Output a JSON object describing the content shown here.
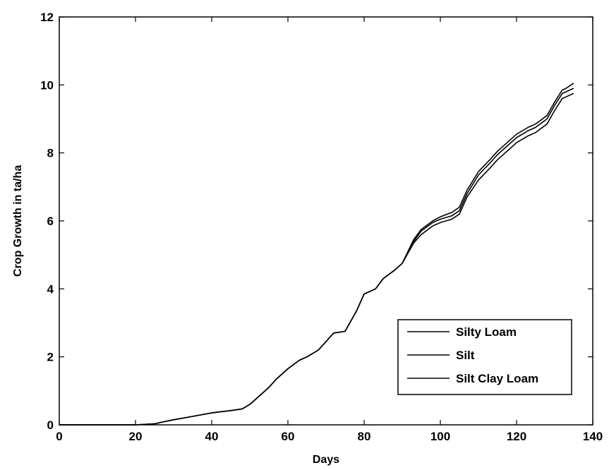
{
  "chart_data": {
    "type": "line",
    "xlabel": "Days",
    "ylabel": "Crop Growth in ta/ha",
    "xlim": [
      0,
      140
    ],
    "ylim": [
      0,
      12
    ],
    "xticks": [
      0,
      20,
      40,
      60,
      80,
      100,
      120,
      140
    ],
    "yticks": [
      0,
      2,
      4,
      6,
      8,
      10,
      12
    ],
    "grid": false,
    "legend_position": "bottom-right",
    "x": [
      0,
      20,
      25,
      27,
      30,
      35,
      40,
      42,
      45,
      48,
      50,
      52,
      55,
      57,
      60,
      63,
      65,
      68,
      70,
      72,
      75,
      78,
      80,
      83,
      85,
      88,
      90,
      93,
      95,
      98,
      100,
      103,
      105,
      107,
      110,
      113,
      115,
      118,
      120,
      123,
      125,
      128,
      130,
      132,
      133,
      135
    ],
    "series": [
      {
        "name": "Silty Loam",
        "color": "#000000",
        "values": [
          0,
          0,
          0.03,
          0.08,
          0.15,
          0.25,
          0.35,
          0.38,
          0.42,
          0.47,
          0.6,
          0.8,
          1.1,
          1.35,
          1.65,
          1.9,
          2.0,
          2.2,
          2.45,
          2.7,
          2.75,
          3.35,
          3.85,
          4.0,
          4.3,
          4.55,
          4.75,
          5.4,
          5.7,
          5.95,
          6.05,
          6.15,
          6.3,
          6.8,
          7.35,
          7.7,
          7.95,
          8.25,
          8.45,
          8.65,
          8.75,
          9.0,
          9.4,
          9.75,
          9.8,
          9.9
        ]
      },
      {
        "name": "Silt",
        "color": "#000000",
        "values": [
          0,
          0,
          0.03,
          0.08,
          0.15,
          0.25,
          0.35,
          0.38,
          0.42,
          0.47,
          0.6,
          0.8,
          1.1,
          1.35,
          1.65,
          1.9,
          2.0,
          2.2,
          2.45,
          2.7,
          2.75,
          3.35,
          3.85,
          4.0,
          4.3,
          4.55,
          4.75,
          5.45,
          5.75,
          6.0,
          6.12,
          6.25,
          6.4,
          6.9,
          7.45,
          7.8,
          8.05,
          8.35,
          8.55,
          8.75,
          8.85,
          9.1,
          9.5,
          9.85,
          9.9,
          10.05
        ]
      },
      {
        "name": "Silt Clay Loam",
        "color": "#000000",
        "values": [
          0,
          0,
          0.03,
          0.08,
          0.15,
          0.25,
          0.35,
          0.38,
          0.42,
          0.47,
          0.6,
          0.8,
          1.1,
          1.35,
          1.65,
          1.9,
          2.0,
          2.2,
          2.45,
          2.7,
          2.75,
          3.35,
          3.85,
          4.0,
          4.3,
          4.55,
          4.75,
          5.35,
          5.6,
          5.85,
          5.95,
          6.05,
          6.2,
          6.7,
          7.2,
          7.55,
          7.8,
          8.1,
          8.3,
          8.5,
          8.6,
          8.85,
          9.25,
          9.6,
          9.65,
          9.75
        ]
      }
    ]
  }
}
